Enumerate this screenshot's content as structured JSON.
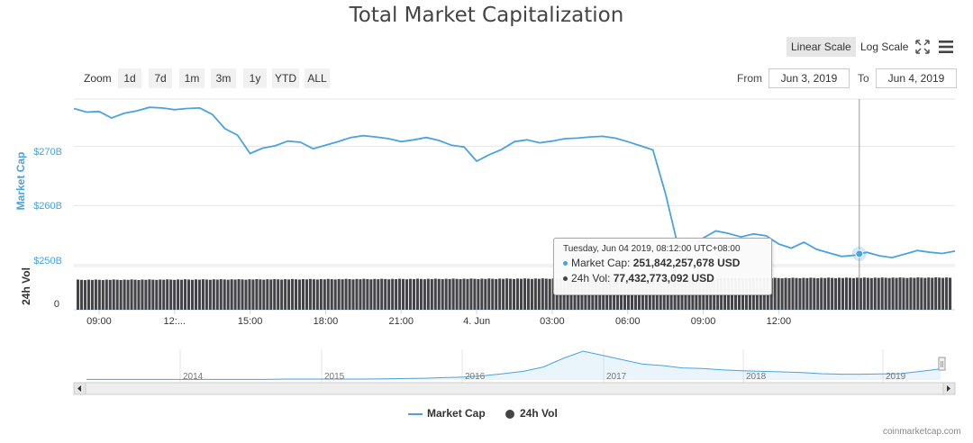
{
  "chart_data": {
    "type": "line",
    "title": "Total Market Capitalization",
    "x_axis_ticks": [
      "09:00",
      "12:...",
      "15:00",
      "18:00",
      "21:00",
      "4. Jun",
      "03:00",
      "06:00",
      "09:00",
      "12:00"
    ],
    "y_axis_ticks": [
      "$250B",
      "$260B",
      "$270B"
    ],
    "volume_axis_ticks": [
      "0"
    ],
    "ylabel": "Market Cap",
    "ylabel_volume": "24h Vol",
    "ylim": [
      250,
      278
    ],
    "grid": true,
    "legend_position": "bottom-center",
    "series": [
      {
        "name": "Market Cap",
        "color": "#4aa3df",
        "unit": "billion USD",
        "x_hours": [
          0,
          0.5,
          1,
          1.5,
          2,
          2.5,
          3,
          3.5,
          4,
          4.5,
          5,
          5.5,
          6,
          6.5,
          7,
          7.5,
          8,
          8.5,
          9,
          9.5,
          10,
          10.5,
          11,
          11.5,
          12,
          12.5,
          13,
          13.5,
          14,
          14.5,
          15,
          15.5,
          16,
          16.5,
          17,
          17.5,
          18,
          18.5,
          19,
          19.5,
          20,
          20.5,
          21,
          21.5,
          22,
          22.5,
          23,
          23.5,
          24,
          24.5,
          25,
          25.5,
          26,
          26.5,
          27,
          27.5,
          28,
          28.5,
          29,
          29.5,
          30,
          30.5,
          31,
          31.5,
          32,
          32.5,
          33,
          33.5,
          34,
          34.5,
          35
        ],
        "values": [
          276.4,
          275.8,
          275.9,
          274.8,
          275.6,
          276.0,
          276.6,
          276.5,
          276.2,
          276.4,
          276.5,
          275.4,
          273.0,
          271.9,
          268.8,
          269.7,
          270.1,
          270.9,
          270.7,
          269.6,
          270.2,
          270.8,
          271.5,
          271.8,
          271.6,
          271.3,
          270.8,
          271.1,
          271.5,
          271.0,
          270.2,
          269.9,
          267.5,
          268.6,
          269.5,
          270.8,
          271.1,
          270.6,
          270.9,
          271.3,
          271.4,
          271.6,
          271.7,
          271.4,
          270.8,
          270.1,
          269.4,
          262.0,
          253.1,
          252.6,
          254.5,
          255.7,
          255.3,
          254.7,
          255.2,
          254.9,
          253.5,
          252.8,
          253.8,
          252.6,
          252.0,
          251.4,
          251.6,
          252.1,
          251.5,
          251.2,
          251.8,
          252.4,
          252.1,
          251.9,
          252.3
        ]
      },
      {
        "name": "24h Vol",
        "color": "#434348"
      }
    ],
    "navigator_years": [
      "2014",
      "2015",
      "2016",
      "2017",
      "2018",
      "2019"
    ],
    "navigator_values": [
      0.02,
      0.02,
      0.02,
      0.02,
      0.02,
      0.02,
      0.02,
      0.02,
      0.02,
      0.02,
      0.03,
      0.03,
      0.03,
      0.03,
      0.03,
      0.04,
      0.05,
      0.06,
      0.08,
      0.1,
      0.15,
      0.22,
      0.3,
      0.45,
      0.75,
      1.0,
      0.85,
      0.7,
      0.55,
      0.5,
      0.42,
      0.4,
      0.35,
      0.32,
      0.3,
      0.28,
      0.26,
      0.22,
      0.2,
      0.2,
      0.21,
      0.22,
      0.3,
      0.38
    ]
  },
  "toolbar": {
    "linear_scale": "Linear Scale",
    "log_scale": "Log Scale",
    "zoom_label": "Zoom",
    "zoom_buttons": [
      "1d",
      "7d",
      "1m",
      "3m",
      "1y",
      "YTD",
      "ALL"
    ],
    "from_label": "From",
    "from_value": "Jun 3, 2019",
    "to_label": "To",
    "to_value": "Jun 4, 2019"
  },
  "tooltip": {
    "date": "Tuesday, Jun 04 2019, 08:12:00 UTC+08:00",
    "market_cap_label": "Market Cap:",
    "market_cap_value": "251,842,257,678 USD",
    "vol_label": "24h Vol:",
    "vol_value": "77,432,773,092 USD",
    "x_hour": 31.2,
    "value": 251.84
  },
  "legend": {
    "market_cap": "Market Cap",
    "vol": "24h Vol"
  },
  "credits": "coinmarketcap.com"
}
